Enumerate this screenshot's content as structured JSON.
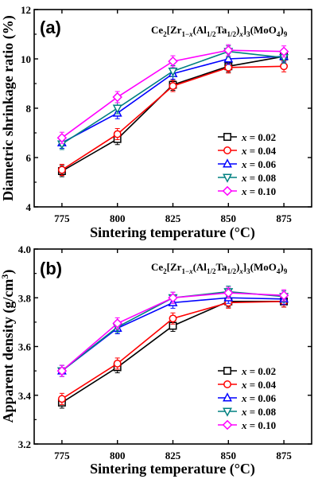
{
  "chart_data": [
    {
      "type": "line",
      "panel_label": "(a)",
      "formula_label": "Ce2[Zr1−x(Al1/2Ta1/2)x]3(MoO4)9",
      "xlabel": "Sintering temperature (°C)",
      "ylabel": "Diametric shrinkage ratio (%)",
      "x": [
        775,
        800,
        825,
        850,
        875
      ],
      "x_ticks": [
        "775",
        "800",
        "825",
        "850",
        "875"
      ],
      "ylim": [
        4,
        12
      ],
      "y_ticks": [
        "4",
        "6",
        "8",
        "10",
        "12"
      ],
      "y_tick_values": [
        4,
        6,
        8,
        10,
        12
      ],
      "legend_position": "right-middle",
      "series": [
        {
          "name": "x = 0.02",
          "color": "#000000",
          "marker": "square",
          "values": [
            5.45,
            6.75,
            8.95,
            9.7,
            10.1
          ]
        },
        {
          "name": "x = 0.04",
          "color": "#ff0000",
          "marker": "circle",
          "values": [
            5.5,
            6.95,
            8.9,
            9.65,
            9.7
          ]
        },
        {
          "name": "x = 0.06",
          "color": "#0000ff",
          "marker": "triangle-up",
          "values": [
            6.6,
            7.8,
            9.4,
            10.0,
            10.1
          ]
        },
        {
          "name": "x = 0.08",
          "color": "#008080",
          "marker": "triangle-down",
          "values": [
            6.55,
            8.0,
            9.5,
            10.3,
            10.05
          ]
        },
        {
          "name": "x = 0.10",
          "color": "#ff00ff",
          "marker": "diamond",
          "values": [
            6.8,
            8.45,
            9.9,
            10.35,
            10.3
          ]
        }
      ]
    },
    {
      "type": "line",
      "panel_label": "(b)",
      "formula_label": "Ce2[Zr1−x(Al1/2Ta1/2)x]3(MoO4)9",
      "xlabel": "Sintering temperature (°C)",
      "ylabel": "Apparent density (g/cm3)",
      "x": [
        775,
        800,
        825,
        850,
        875
      ],
      "x_ticks": [
        "775",
        "800",
        "825",
        "850",
        "875"
      ],
      "ylim": [
        3.2,
        4.0
      ],
      "y_ticks": [
        "3.2",
        "3.4",
        "3.6",
        "3.8",
        "4.0"
      ],
      "y_tick_values": [
        3.2,
        3.4,
        3.6,
        3.8,
        4.0
      ],
      "legend_position": "bottom-right",
      "series": [
        {
          "name": "x = 0.02",
          "color": "#000000",
          "marker": "square",
          "values": [
            3.37,
            3.515,
            3.685,
            3.785,
            3.785
          ]
        },
        {
          "name": "x = 0.04",
          "color": "#ff0000",
          "marker": "circle",
          "values": [
            3.385,
            3.53,
            3.715,
            3.78,
            3.785
          ]
        },
        {
          "name": "x = 0.06",
          "color": "#0000ff",
          "marker": "triangle-up",
          "values": [
            3.5,
            3.675,
            3.78,
            3.8,
            3.795
          ]
        },
        {
          "name": "x = 0.08",
          "color": "#008080",
          "marker": "triangle-down",
          "values": [
            3.5,
            3.68,
            3.8,
            3.825,
            3.805
          ]
        },
        {
          "name": "x = 0.10",
          "color": "#ff00ff",
          "marker": "diamond",
          "values": [
            3.5,
            3.695,
            3.8,
            3.82,
            3.81
          ]
        }
      ]
    }
  ]
}
